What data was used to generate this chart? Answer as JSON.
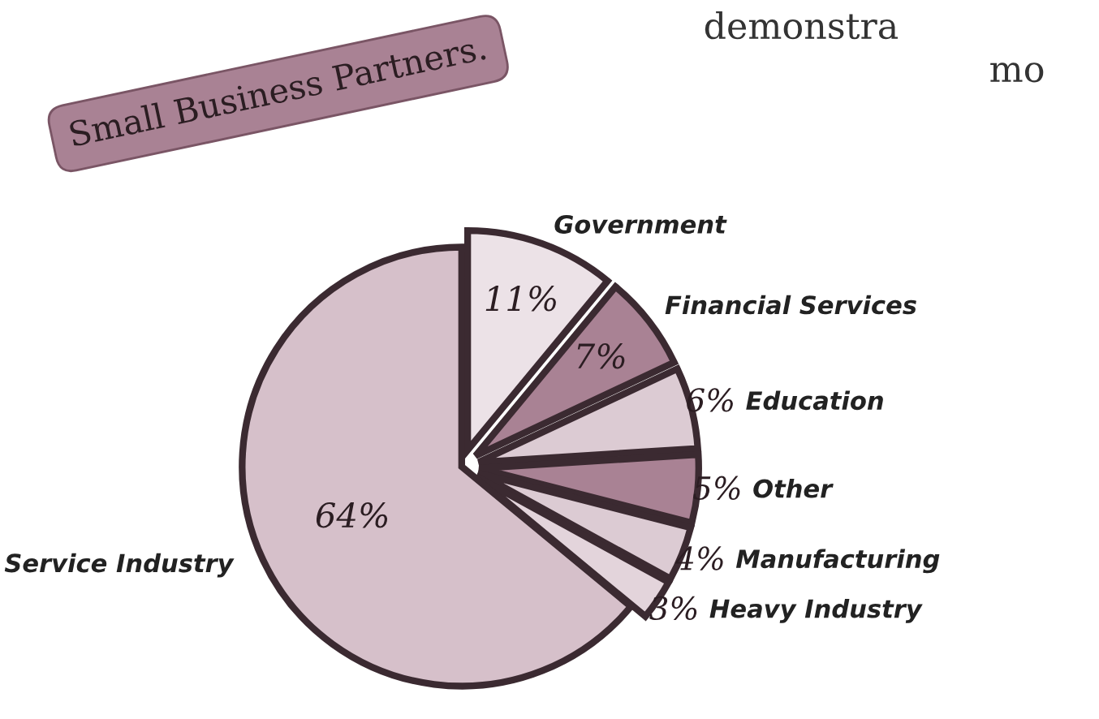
{
  "chart_data": {
    "type": "pie",
    "title": "Small Business Partners.",
    "categories": [
      "Government",
      "Financial Services",
      "Education",
      "Other",
      "Manufacturing",
      "Heavy Industry",
      "Service Industry"
    ],
    "values": [
      11,
      7,
      6,
      5,
      4,
      3,
      64
    ],
    "colors": [
      "#ece2e7",
      "#a98294",
      "#dccbd3",
      "#a98294",
      "#dccbd3",
      "#e3d4db",
      "#d6c0ca"
    ],
    "value_labels": [
      "11%",
      "7%",
      "6%",
      "5%",
      "4%",
      "3%",
      "64%"
    ],
    "annotations": [
      "demonstra",
      "mo"
    ]
  }
}
